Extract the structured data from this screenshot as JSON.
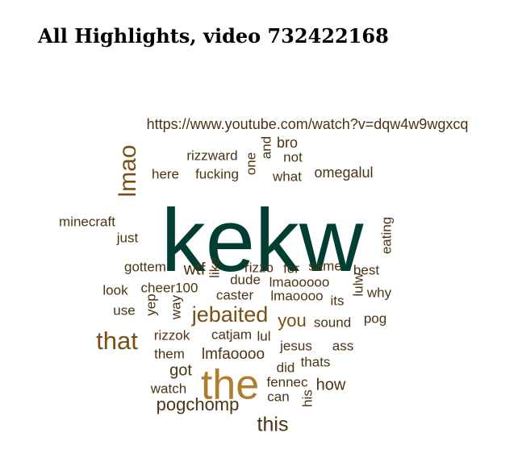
{
  "title": "All Highlights, video 732422168",
  "palette": {
    "dark_teal": "#003d33",
    "gold": "#b07d2c",
    "brown": "#7a4f14",
    "dark_brown": "#4a3414",
    "olive": "#5a4620"
  },
  "words": [
    {
      "text": "kekw",
      "color": "dark_teal"
    },
    {
      "text": "the",
      "color": "gold"
    },
    {
      "text": "jebaited",
      "color": "brown"
    },
    {
      "text": "that",
      "color": "brown"
    },
    {
      "text": "lmao",
      "color": "brown"
    },
    {
      "text": "this",
      "color": "dark_brown"
    },
    {
      "text": "pogchomp",
      "color": "dark_brown"
    },
    {
      "text": "you",
      "color": "brown"
    },
    {
      "text": "https://www.youtube.com/watch?v=dqw4w9wgxcq",
      "color": "dark_brown"
    },
    {
      "text": "omegalul",
      "color": "dark_brown"
    },
    {
      "text": "lmfaoooo",
      "color": "dark_brown"
    },
    {
      "text": "wtf",
      "color": "dark_brown"
    },
    {
      "text": "got",
      "color": "dark_brown"
    },
    {
      "text": "how",
      "color": "dark_brown"
    },
    {
      "text": "bro",
      "color": "dark_brown"
    },
    {
      "text": "rizzward",
      "color": "dark_brown"
    },
    {
      "text": "fucking",
      "color": "dark_brown"
    },
    {
      "text": "one",
      "color": "dark_brown"
    },
    {
      "text": "and",
      "color": "dark_brown"
    },
    {
      "text": "not",
      "color": "dark_brown"
    },
    {
      "text": "what",
      "color": "dark_brown"
    },
    {
      "text": "here",
      "color": "dark_brown"
    },
    {
      "text": "minecraft",
      "color": "dark_brown"
    },
    {
      "text": "just",
      "color": "dark_brown"
    },
    {
      "text": "eating",
      "color": "dark_brown"
    },
    {
      "text": "gottem",
      "color": "dark_brown"
    },
    {
      "text": "like",
      "color": "dark_brown"
    },
    {
      "text": "rizzo",
      "color": "dark_brown"
    },
    {
      "text": "for",
      "color": "dark_brown"
    },
    {
      "text": "same",
      "color": "dark_brown"
    },
    {
      "text": "best",
      "color": "dark_brown"
    },
    {
      "text": "look",
      "color": "dark_brown"
    },
    {
      "text": "cheer100",
      "color": "dark_brown"
    },
    {
      "text": "dude",
      "color": "dark_brown"
    },
    {
      "text": "lmaooooo",
      "color": "dark_brown"
    },
    {
      "text": "lulw",
      "color": "dark_brown"
    },
    {
      "text": "why",
      "color": "dark_brown"
    },
    {
      "text": "use",
      "color": "dark_brown"
    },
    {
      "text": "yep",
      "color": "dark_brown"
    },
    {
      "text": "way",
      "color": "dark_brown"
    },
    {
      "text": "caster",
      "color": "dark_brown"
    },
    {
      "text": "lmaoooo",
      "color": "dark_brown"
    },
    {
      "text": "its",
      "color": "dark_brown"
    },
    {
      "text": "pog",
      "color": "dark_brown"
    },
    {
      "text": "sound",
      "color": "dark_brown"
    },
    {
      "text": "rizzok",
      "color": "dark_brown"
    },
    {
      "text": "catjam",
      "color": "dark_brown"
    },
    {
      "text": "lul",
      "color": "dark_brown"
    },
    {
      "text": "jesus",
      "color": "dark_brown"
    },
    {
      "text": "ass",
      "color": "dark_brown"
    },
    {
      "text": "them",
      "color": "dark_brown"
    },
    {
      "text": "did",
      "color": "dark_brown"
    },
    {
      "text": "thats",
      "color": "dark_brown"
    },
    {
      "text": "watch",
      "color": "dark_brown"
    },
    {
      "text": "fennec",
      "color": "dark_brown"
    },
    {
      "text": "can",
      "color": "dark_brown"
    },
    {
      "text": "his",
      "color": "dark_brown"
    }
  ]
}
